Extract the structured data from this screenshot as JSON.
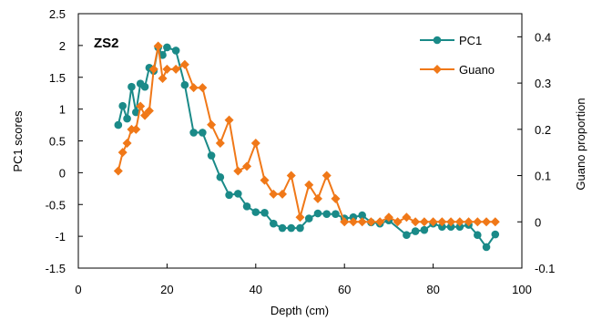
{
  "chart_data": {
    "type": "line",
    "panel_label": "ZS2",
    "xlabel": "Depth (cm)",
    "ylabel": "PC1 scores",
    "y2label": "Guano proportion",
    "xlim": [
      0,
      100
    ],
    "ylim": [
      -1.5,
      2.5
    ],
    "y2lim": [
      -0.1,
      0.45
    ],
    "x_ticks": [
      "0",
      "20",
      "40",
      "60",
      "80",
      "100"
    ],
    "y_ticks": [
      "-1.5",
      "-1",
      "-0.5",
      "0",
      "0.5",
      "1",
      "1.5",
      "2",
      "2.5"
    ],
    "y2_ticks": [
      "-0.1",
      "0",
      "0.1",
      "0.2",
      "0.3",
      "0.4"
    ],
    "legend_position": "top-right",
    "series": [
      {
        "name": "PC1",
        "axis": "left",
        "color": "#1a8a88",
        "marker": "circle",
        "x": [
          9,
          10,
          11,
          12,
          13,
          14,
          15,
          16,
          17,
          18,
          19,
          20,
          22,
          24,
          26,
          28,
          30,
          32,
          34,
          36,
          38,
          40,
          42,
          44,
          46,
          48,
          50,
          52,
          54,
          56,
          58,
          60,
          62,
          64,
          66,
          68,
          70,
          74,
          76,
          78,
          80,
          82,
          84,
          86,
          88,
          90,
          92,
          94
        ],
        "y": [
          0.75,
          1.05,
          0.85,
          1.35,
          0.95,
          1.4,
          1.35,
          1.65,
          1.6,
          1.97,
          1.85,
          1.97,
          1.92,
          1.38,
          0.63,
          0.63,
          0.27,
          -0.07,
          -0.35,
          -0.33,
          -0.53,
          -0.62,
          -0.63,
          -0.8,
          -0.87,
          -0.87,
          -0.87,
          -0.72,
          -0.64,
          -0.65,
          -0.65,
          -0.72,
          -0.7,
          -0.67,
          -0.78,
          -0.8,
          -0.75,
          -0.98,
          -0.92,
          -0.9,
          -0.8,
          -0.85,
          -0.85,
          -0.85,
          -0.82,
          -0.98,
          -1.17,
          -0.97
        ]
      },
      {
        "name": "Guano",
        "axis": "right",
        "color": "#f07818",
        "marker": "diamond",
        "x": [
          9,
          10,
          11,
          12,
          13,
          14,
          15,
          16,
          17,
          18,
          19,
          20,
          22,
          24,
          26,
          28,
          30,
          32,
          34,
          36,
          38,
          40,
          42,
          44,
          46,
          48,
          50,
          52,
          54,
          56,
          58,
          60,
          62,
          64,
          66,
          68,
          70,
          72,
          74,
          76,
          78,
          80,
          82,
          84,
          86,
          88,
          90,
          92,
          94
        ],
        "y": [
          0.11,
          0.15,
          0.17,
          0.2,
          0.2,
          0.25,
          0.23,
          0.24,
          0.33,
          0.38,
          0.31,
          0.33,
          0.33,
          0.34,
          0.29,
          0.29,
          0.21,
          0.17,
          0.22,
          0.11,
          0.12,
          0.17,
          0.09,
          0.06,
          0.06,
          0.1,
          0.01,
          0.08,
          0.05,
          0.1,
          0.05,
          0.0,
          0.0,
          0.0,
          0.0,
          0.0,
          0.01,
          0.0,
          0.01,
          0.0,
          0.0,
          0.0,
          0.0,
          0.0,
          0.0,
          0.0,
          0.0,
          0.0,
          0.0
        ]
      }
    ]
  }
}
